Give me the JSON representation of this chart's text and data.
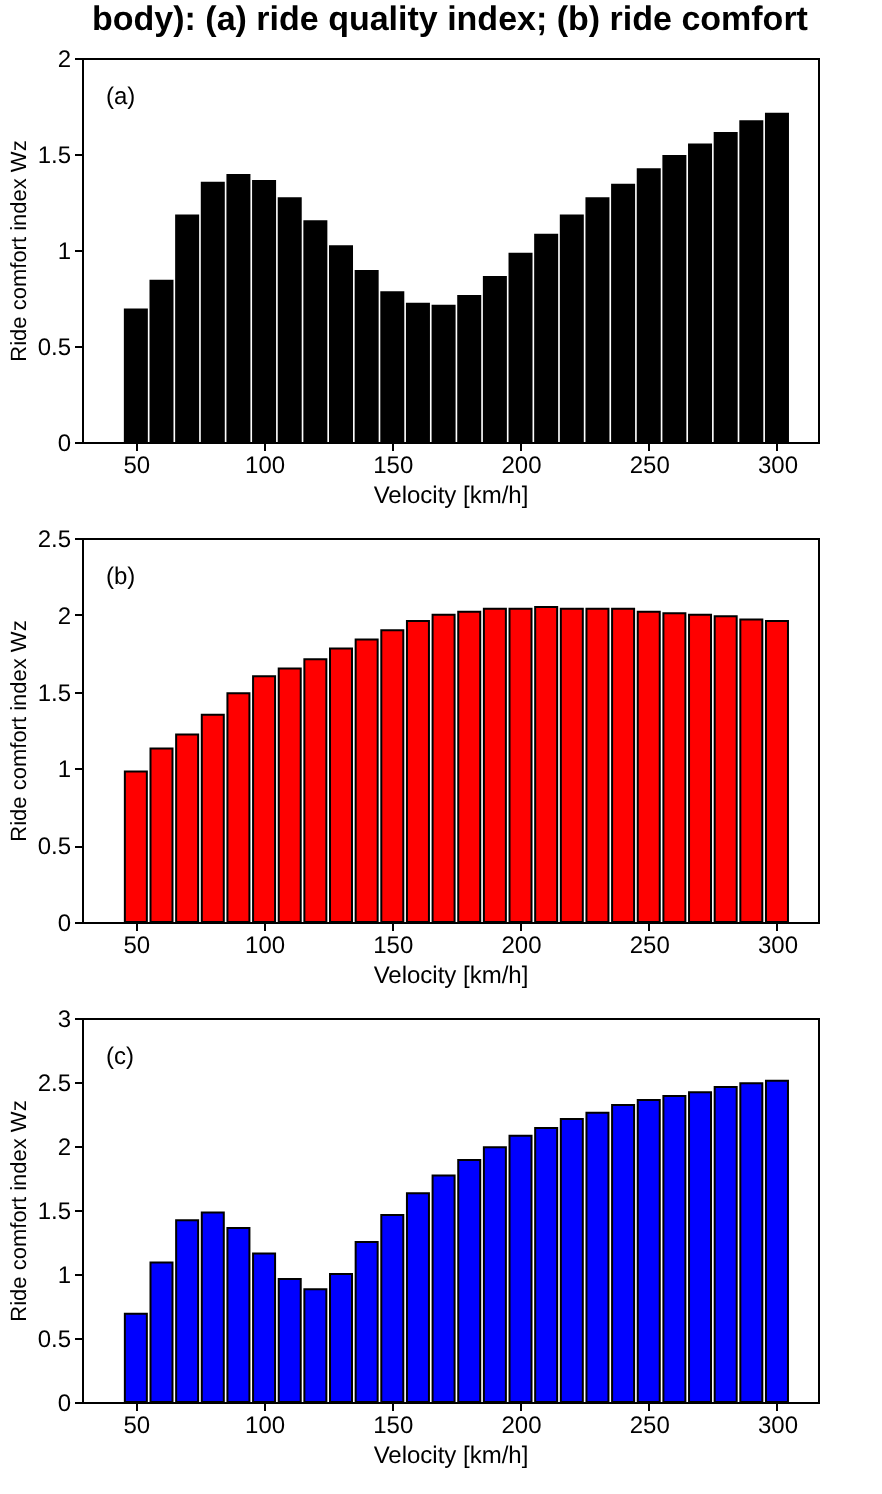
{
  "chart_data": [
    {
      "type": "bar",
      "title": "body): (a) ride quality index; (b) ride comfort",
      "xlabel": "Velocity [km/h]",
      "ylabel": "Ride comfort index Wz",
      "annotations": [
        "(a)"
      ],
      "x": [
        50,
        60,
        70,
        80,
        90,
        100,
        110,
        120,
        130,
        140,
        150,
        160,
        170,
        180,
        190,
        200,
        210,
        220,
        230,
        240,
        250,
        260,
        270,
        280,
        290,
        300
      ],
      "series": [
        {
          "color": "#000000",
          "values": [
            0.69,
            0.84,
            1.18,
            1.35,
            1.39,
            1.36,
            1.27,
            1.15,
            1.02,
            0.89,
            0.78,
            0.72,
            0.71,
            0.76,
            0.86,
            0.98,
            1.08,
            1.18,
            1.27,
            1.34,
            1.42,
            1.49,
            1.55,
            1.61,
            1.67,
            1.71
          ]
        }
      ],
      "xlim": [
        29,
        316
      ],
      "xticks": [
        50,
        100,
        150,
        200,
        250,
        300
      ],
      "ylim": [
        0,
        2
      ],
      "yticks": [
        0,
        0.5,
        1,
        1.5,
        2
      ],
      "grid": false
    },
    {
      "type": "bar",
      "xlabel": "Velocity [km/h]",
      "ylabel": "Ride comfort index Wz",
      "annotations": [
        "(b)"
      ],
      "x": [
        50,
        60,
        70,
        80,
        90,
        100,
        110,
        120,
        130,
        140,
        150,
        160,
        170,
        180,
        190,
        200,
        210,
        220,
        230,
        240,
        250,
        260,
        270,
        280,
        290,
        300
      ],
      "series": [
        {
          "color": "#ff0000",
          "values": [
            0.98,
            1.13,
            1.22,
            1.35,
            1.49,
            1.6,
            1.65,
            1.71,
            1.78,
            1.84,
            1.9,
            1.96,
            2.0,
            2.02,
            2.04,
            2.04,
            2.05,
            2.04,
            2.04,
            2.04,
            2.02,
            2.01,
            2.0,
            1.99,
            1.97,
            1.96
          ]
        }
      ],
      "xlim": [
        29,
        316
      ],
      "xticks": [
        50,
        100,
        150,
        200,
        250,
        300
      ],
      "ylim": [
        0,
        2.5
      ],
      "yticks": [
        0,
        0.5,
        1,
        1.5,
        2,
        2.5
      ],
      "grid": false
    },
    {
      "type": "bar",
      "xlabel": "Velocity [km/h]",
      "ylabel": "Ride comfort index Wz",
      "annotations": [
        "(c)"
      ],
      "x": [
        50,
        60,
        70,
        80,
        90,
        100,
        110,
        120,
        130,
        140,
        150,
        160,
        170,
        180,
        190,
        200,
        210,
        220,
        230,
        240,
        250,
        260,
        270,
        280,
        290,
        300
      ],
      "series": [
        {
          "color": "#0000ff",
          "values": [
            0.69,
            1.09,
            1.42,
            1.48,
            1.36,
            1.16,
            0.96,
            0.88,
            1.0,
            1.25,
            1.46,
            1.63,
            1.77,
            1.89,
            1.99,
            2.08,
            2.14,
            2.21,
            2.26,
            2.32,
            2.36,
            2.39,
            2.42,
            2.46,
            2.49,
            2.51
          ]
        }
      ],
      "xlim": [
        29,
        316
      ],
      "xticks": [
        50,
        100,
        150,
        200,
        250,
        300
      ],
      "ylim": [
        0,
        3
      ],
      "yticks": [
        0,
        0.5,
        1,
        1.5,
        2,
        2.5,
        3
      ],
      "grid": false
    }
  ]
}
